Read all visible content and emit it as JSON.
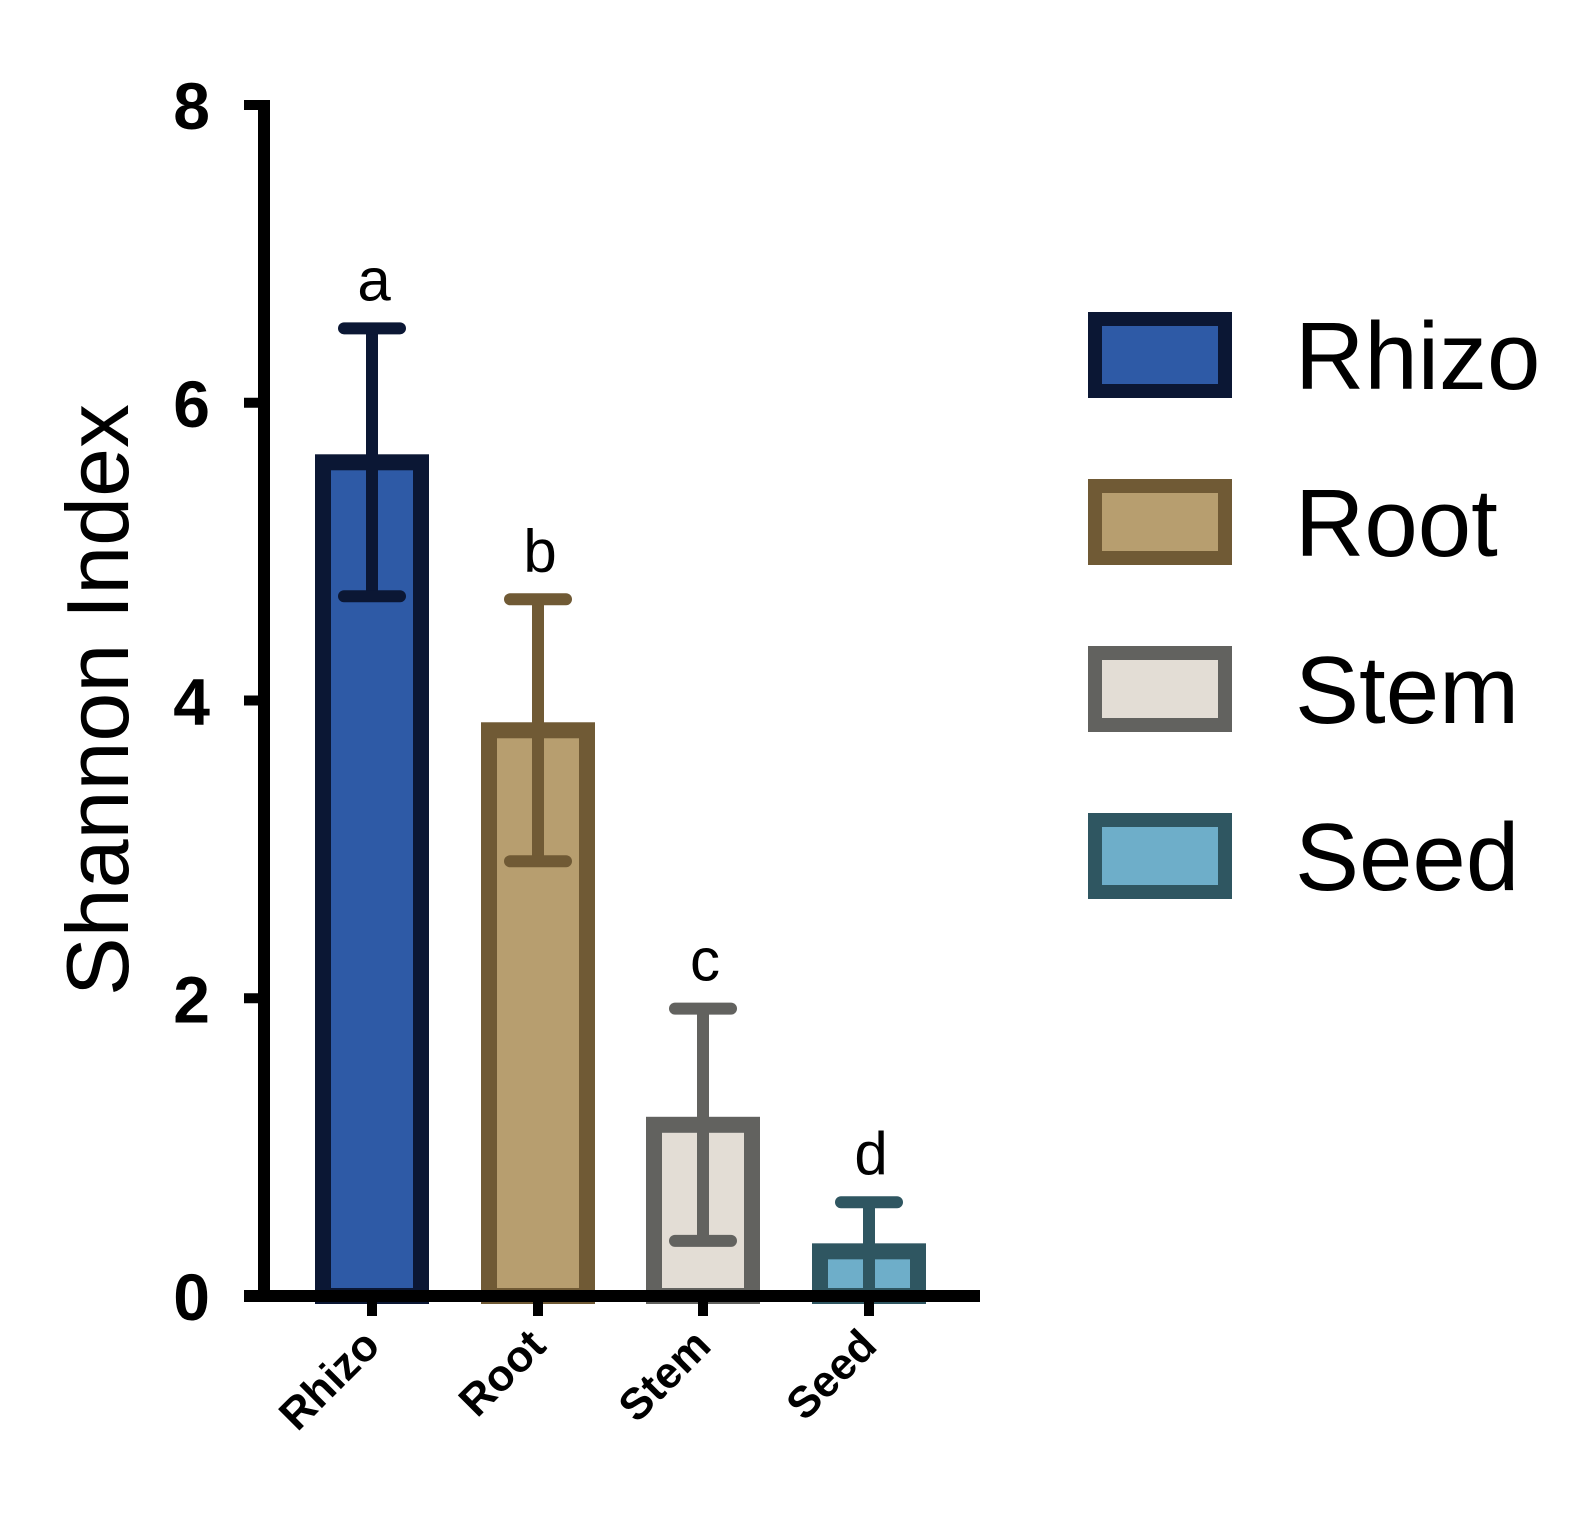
{
  "chart_data": {
    "type": "bar",
    "categories": [
      "Rhizo",
      "Root",
      "Stem",
      "Seed"
    ],
    "values": [
      5.6,
      3.8,
      1.15,
      0.3
    ],
    "errors": [
      0.9,
      0.88,
      0.78,
      0.33
    ],
    "significance": [
      "a",
      "b",
      "c",
      "d"
    ],
    "ylabel": "Shannon Index",
    "xlabel": "",
    "ylim": [
      0,
      8
    ],
    "yticks": [
      0,
      2,
      4,
      6,
      8
    ],
    "grid": false,
    "legend": {
      "position": "right",
      "entries": [
        "Rhizo",
        "Root",
        "Stem",
        "Seed"
      ]
    },
    "colors": {
      "fill": [
        "#2e5aa6",
        "#b79e6f",
        "#e3ddd5",
        "#6eaec9"
      ],
      "stroke": [
        "#0b1734",
        "#705a35",
        "#62625f",
        "#2f5661"
      ]
    }
  }
}
